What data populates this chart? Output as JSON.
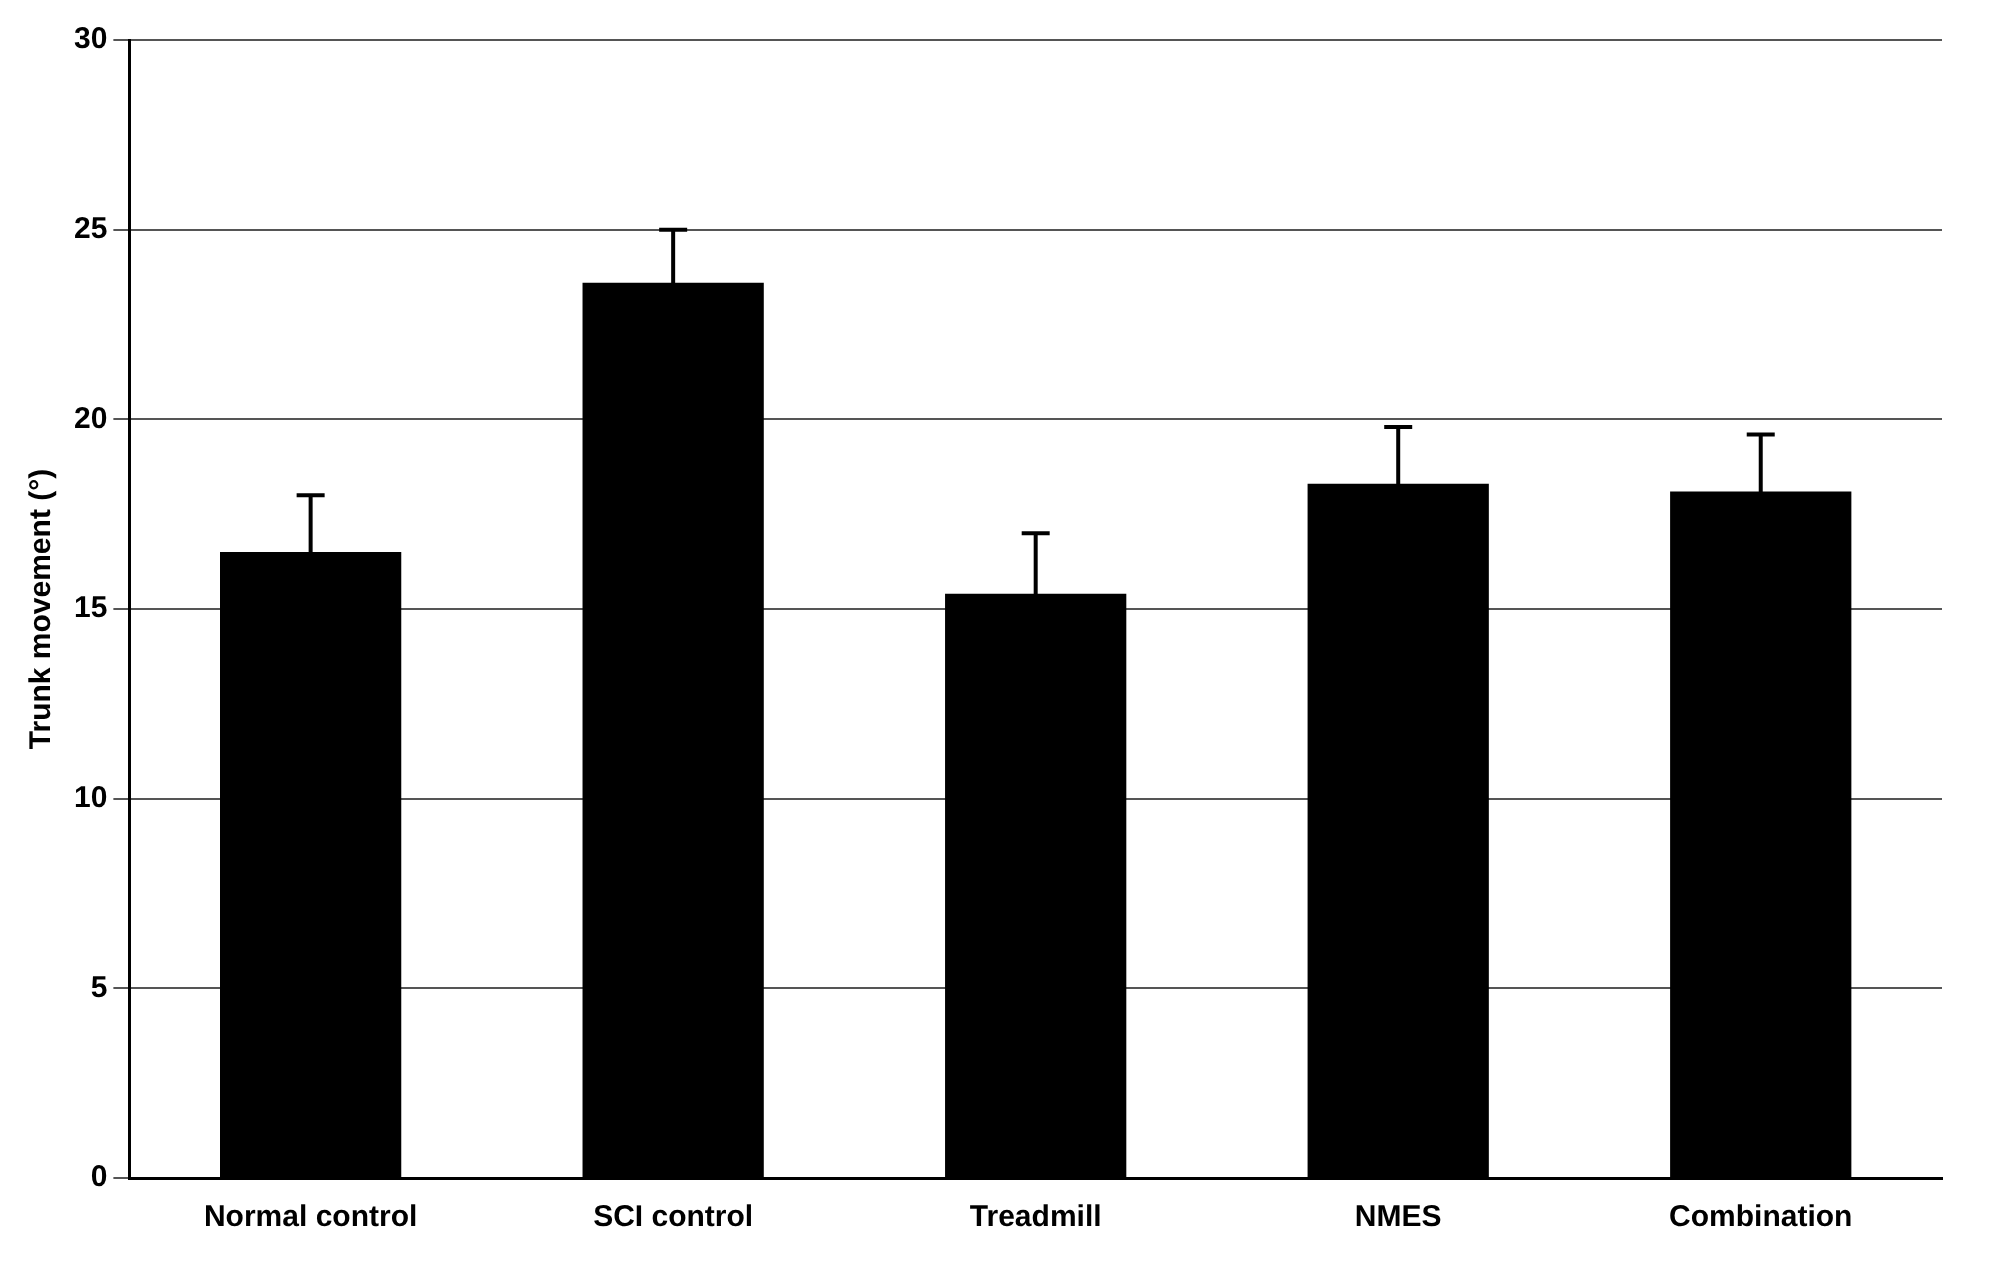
{
  "chart_data": {
    "type": "bar",
    "ylabel": "Trunk movement (°)",
    "categories": [
      "Normal control",
      "SCI control",
      "Treadmill",
      "NMES",
      "Combination"
    ],
    "values": [
      16.5,
      23.6,
      15.4,
      18.3,
      18.1
    ],
    "errors": [
      1.5,
      1.4,
      1.6,
      1.5,
      1.5
    ],
    "color": "#000000",
    "ylim": [
      0,
      30
    ],
    "yticks": [
      0,
      5,
      10,
      15,
      20,
      25,
      30
    ],
    "grid": "y",
    "legend": false
  }
}
